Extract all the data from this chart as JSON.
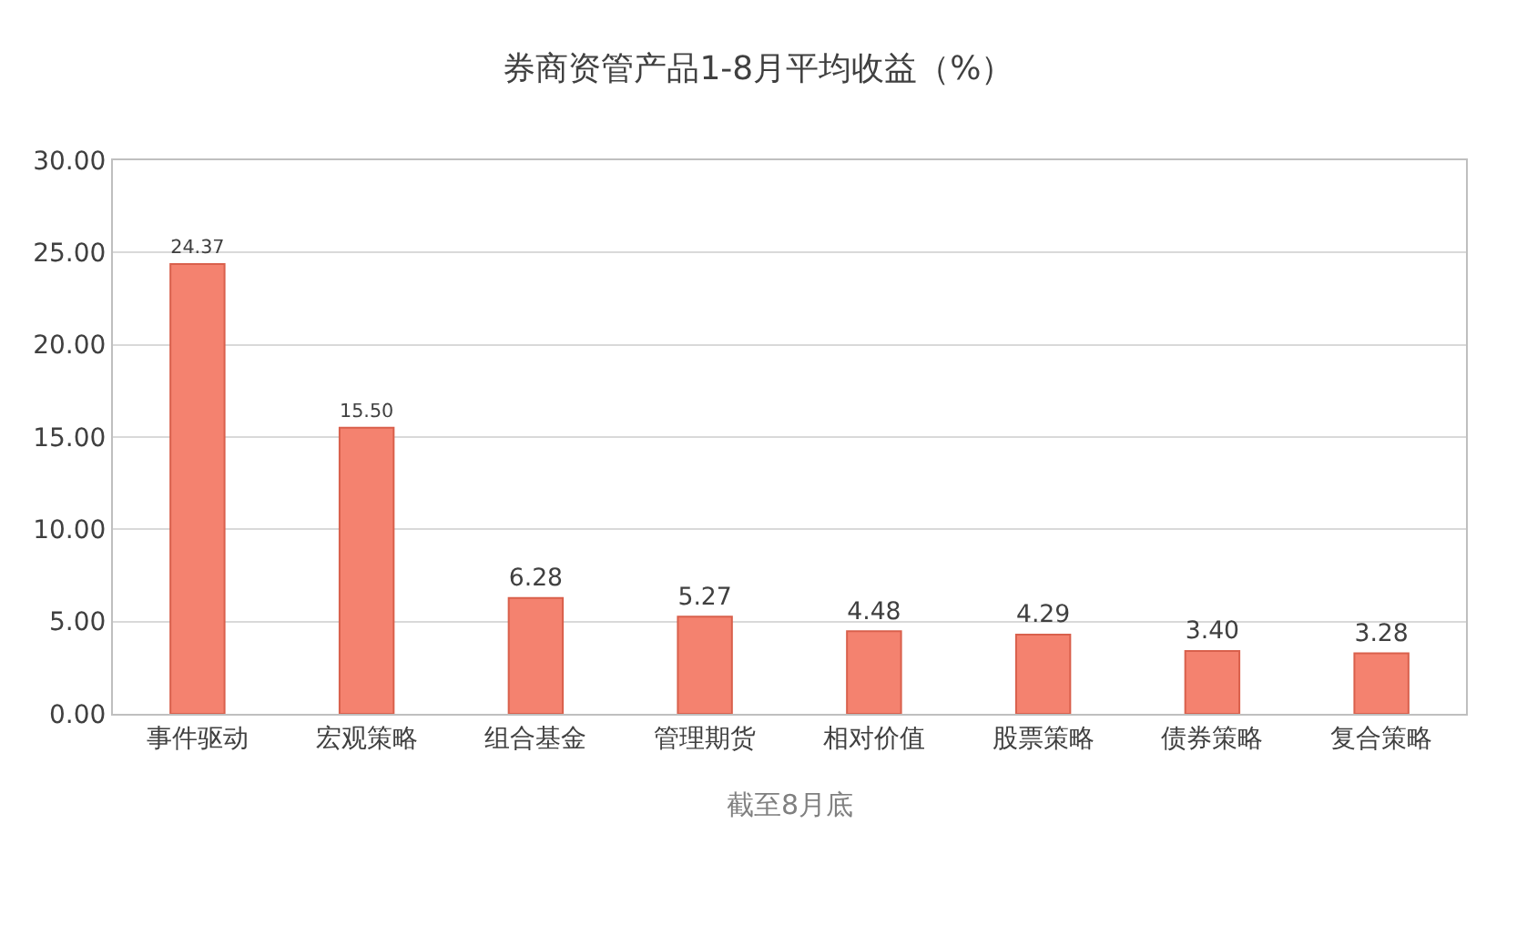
{
  "chart_data": {
    "type": "bar",
    "title": "券商资管产品1-8月平均收益（%）",
    "categories": [
      "事件驱动",
      "宏观策略",
      "组合基金",
      "管理期货",
      "相对价值",
      "股票策略",
      "债券策略",
      "复合策略"
    ],
    "values": [
      24.37,
      15.5,
      6.28,
      5.27,
      4.48,
      4.29,
      3.4,
      3.28
    ],
    "value_labels": [
      "24.37",
      "15.50",
      "6.28",
      "5.27",
      "4.48",
      "4.29",
      "3.40",
      "3.28"
    ],
    "color": "#f4826f",
    "ylim": [
      0,
      30
    ],
    "yticks": [
      {
        "value": 0,
        "label": "0.00"
      },
      {
        "value": 5,
        "label": "5.00"
      },
      {
        "value": 10,
        "label": "10.00"
      },
      {
        "value": 15,
        "label": "15.00"
      },
      {
        "value": 20,
        "label": "20.00"
      },
      {
        "value": 25,
        "label": "25.00"
      },
      {
        "value": 30,
        "label": "30.00"
      }
    ],
    "grid": "y",
    "annotations": [
      "截至8月底"
    ]
  }
}
